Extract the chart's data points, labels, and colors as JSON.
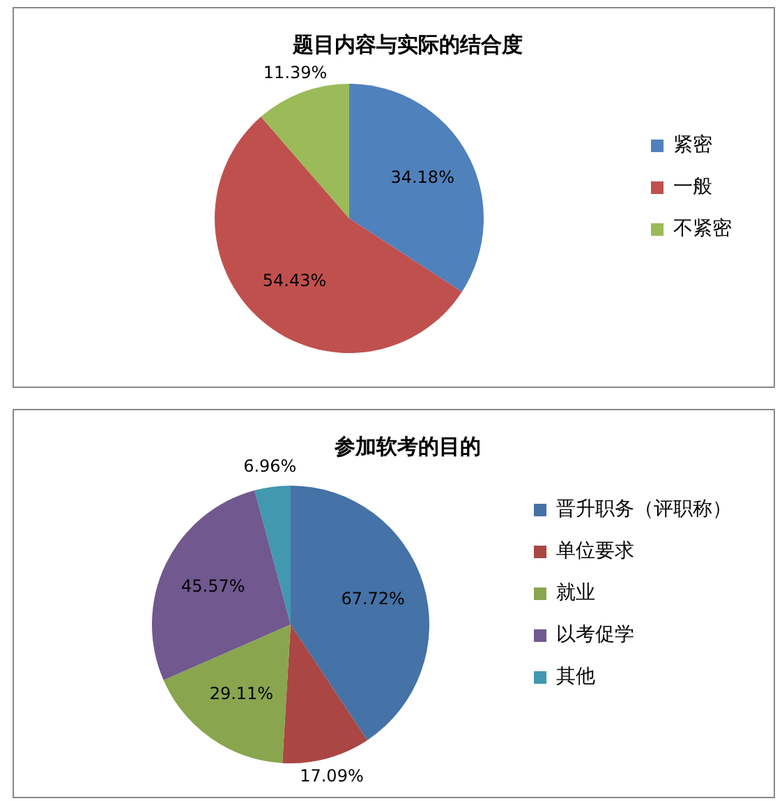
{
  "chart_data": [
    {
      "type": "pie",
      "title": "题目内容与实际的结合度",
      "categories": [
        "紧密",
        "一般",
        "不紧密"
      ],
      "values": [
        34.18,
        54.43,
        11.39
      ],
      "colors": [
        "#4f81bd",
        "#c0504d",
        "#9bbb59"
      ],
      "value_labels": [
        "34.18%",
        "54.43%",
        "11.39%"
      ],
      "legend": "right"
    },
    {
      "type": "pie",
      "title": "参加软考的目的",
      "categories": [
        "晋升职务（评职称）",
        "单位要求",
        "就业",
        "以考促学",
        "其他"
      ],
      "values": [
        67.72,
        17.09,
        29.11,
        45.57,
        6.96
      ],
      "colors": [
        "#4572a7",
        "#aa4643",
        "#89a54e",
        "#71588f",
        "#4198af"
      ],
      "value_labels": [
        "67.72%",
        "17.09%",
        "29.11%",
        "45.57%",
        "6.96%"
      ],
      "legend": "right"
    }
  ]
}
